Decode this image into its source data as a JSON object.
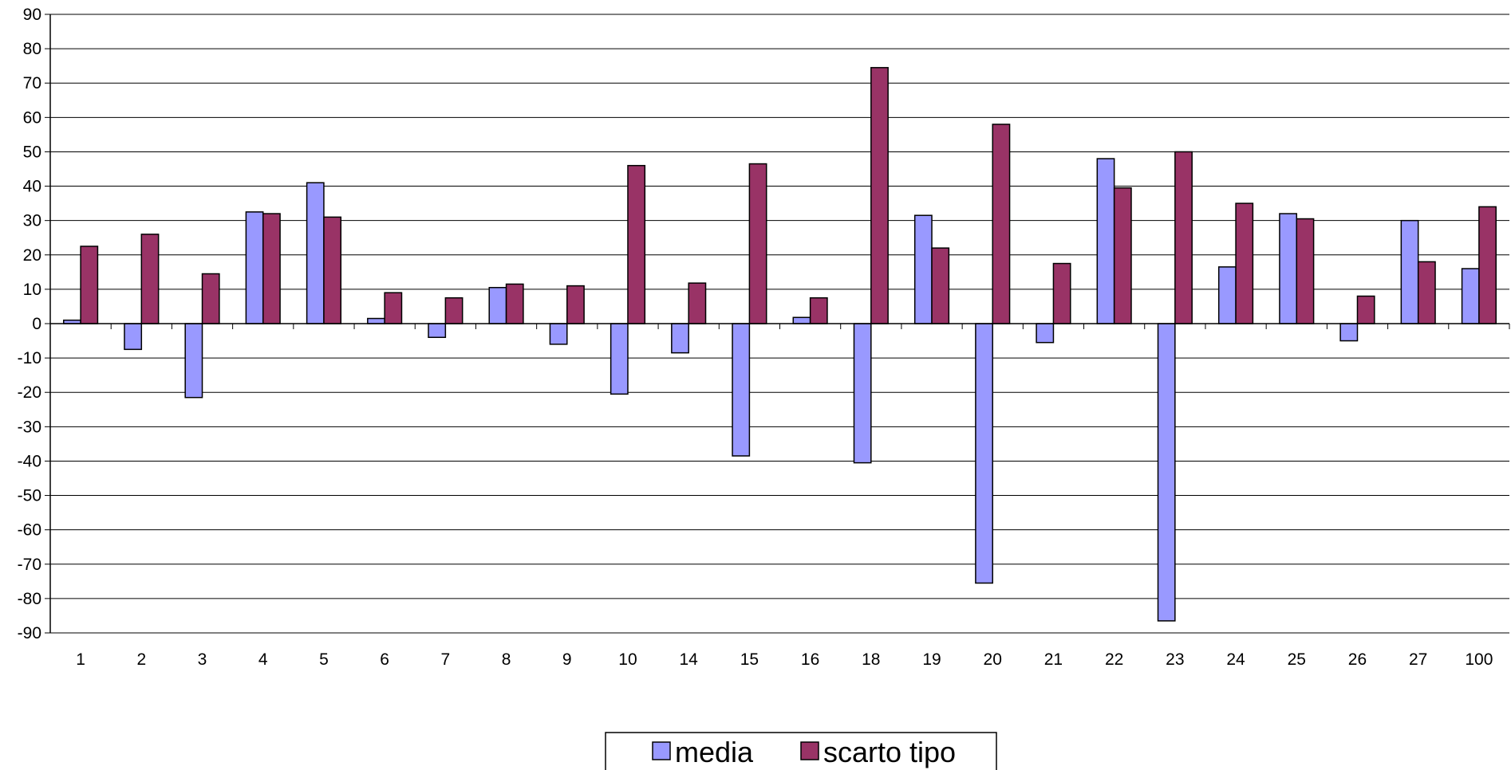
{
  "chart_data": {
    "type": "bar",
    "title": "",
    "xlabel": "",
    "ylabel": "",
    "ylim": [
      -90,
      90
    ],
    "yticks": [
      90,
      80,
      70,
      60,
      50,
      40,
      30,
      20,
      10,
      0,
      -10,
      -20,
      -30,
      -40,
      -50,
      -60,
      -70,
      -80,
      -90
    ],
    "categories": [
      "1",
      "2",
      "3",
      "4",
      "5",
      "6",
      "7",
      "8",
      "9",
      "10",
      "14",
      "15",
      "16",
      "18",
      "19",
      "20",
      "21",
      "22",
      "23",
      "24",
      "25",
      "26",
      "27",
      "100"
    ],
    "grid": true,
    "legend_position": "bottom-center",
    "series": [
      {
        "name": "media",
        "color": "#9999FF",
        "values": [
          1,
          -7.5,
          -21.5,
          32.5,
          41,
          1.5,
          -4,
          10.5,
          -6,
          -20.5,
          -8.5,
          -38.5,
          1.8,
          -40.5,
          31.5,
          -75.5,
          -5.5,
          48,
          -86.5,
          16.5,
          32,
          -5,
          30,
          16
        ]
      },
      {
        "name": "scarto tipo",
        "color": "#993366",
        "values": [
          22.5,
          26,
          14.5,
          32,
          31,
          9,
          7.5,
          11.5,
          11,
          46,
          11.8,
          46.5,
          7.5,
          74.5,
          22,
          58,
          17.5,
          39.5,
          50,
          35,
          30.5,
          8,
          18,
          34
        ]
      }
    ]
  }
}
